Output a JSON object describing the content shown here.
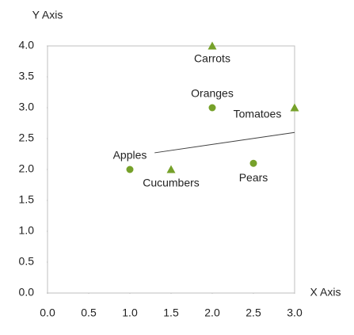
{
  "chart_data": {
    "type": "scatter",
    "x_label": "X Axis",
    "y_label": "Y Axis",
    "xlim": [
      0,
      3
    ],
    "ylim": [
      0,
      4
    ],
    "xticks": [
      {
        "value": 0,
        "label": "0.0"
      },
      0.5,
      {
        "value": 1,
        "label": "1.0"
      },
      1.5,
      {
        "value": 2,
        "label": "2.0"
      },
      2.5,
      {
        "value": 3,
        "label": "3.0"
      }
    ],
    "yticks": [
      {
        "value": 0,
        "label": "0.0"
      },
      0.5,
      {
        "value": 1,
        "label": "1.0"
      },
      1.5,
      {
        "value": 2,
        "label": "2.0"
      },
      2.5,
      {
        "value": 3,
        "label": "3.0"
      },
      3.5,
      {
        "value": 4,
        "label": "4.0"
      }
    ],
    "grid": false,
    "series": [
      {
        "marker": "circle",
        "color": "#76a12a",
        "x": [
          1,
          2,
          2.5
        ],
        "values": [
          2,
          3,
          2.1
        ],
        "labels": [
          "Apples",
          "Oranges",
          "Pears"
        ]
      },
      {
        "marker": "triangle",
        "color": "#76a12a",
        "x": [
          1.5,
          2,
          3
        ],
        "values": [
          2,
          4,
          3
        ],
        "labels": [
          "Cucumbers",
          "Carrots",
          "Tomatoes"
        ]
      },
      {
        "marker": "line",
        "color": "#404040",
        "x": [
          1.3,
          3
        ],
        "values": [
          2.27,
          2.6
        ]
      }
    ]
  }
}
